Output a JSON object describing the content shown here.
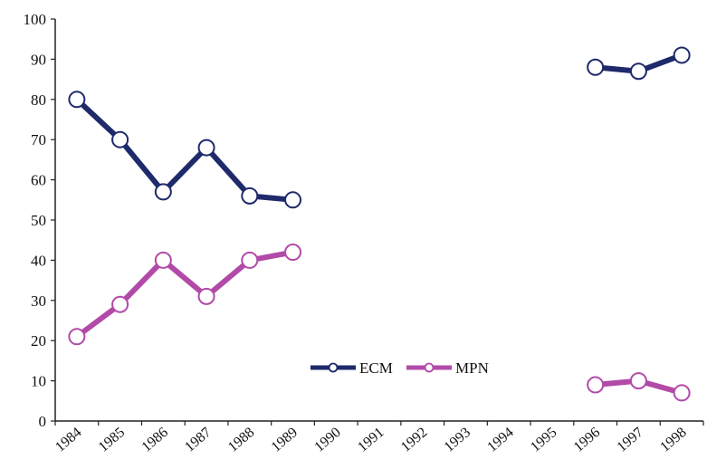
{
  "chart_data": {
    "type": "line",
    "title": "",
    "xlabel": "",
    "ylabel": "",
    "categories": [
      "1984",
      "1985",
      "1986",
      "1987",
      "1988",
      "1989",
      "1990",
      "1991",
      "1992",
      "1993",
      "1994",
      "1995",
      "1996",
      "1997",
      "1998"
    ],
    "ylim": [
      0,
      100
    ],
    "yticks": [
      0,
      10,
      20,
      30,
      40,
      50,
      60,
      70,
      80,
      90,
      100
    ],
    "grid": false,
    "legend_position": "lower-center",
    "series": [
      {
        "name": "ECM",
        "color": "#1f2a6b",
        "values": [
          80,
          70,
          57,
          68,
          56,
          55,
          null,
          null,
          null,
          null,
          null,
          null,
          88,
          87,
          91
        ]
      },
      {
        "name": "MPN",
        "color": "#b24aa8",
        "values": [
          21,
          29,
          40,
          31,
          40,
          42,
          null,
          null,
          null,
          null,
          null,
          null,
          9,
          10,
          7
        ]
      }
    ]
  }
}
